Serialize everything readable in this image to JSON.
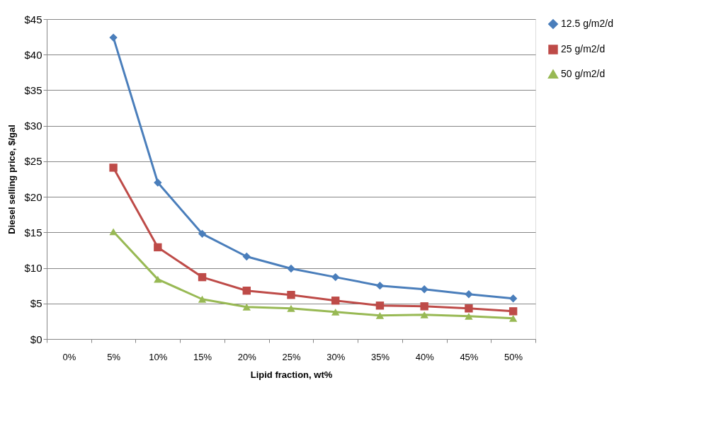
{
  "chart_data": {
    "type": "line",
    "xlabel": "Lipid fraction, wt%",
    "ylabel": "Diesel selling price, $/gal",
    "categories": [
      "0%",
      "5%",
      "10%",
      "15%",
      "20%",
      "25%",
      "30%",
      "35%",
      "40%",
      "45%",
      "50%"
    ],
    "series": [
      {
        "name": "12.5 g/m2/d",
        "color": "#4a7ebb",
        "marker": "diamond",
        "values": [
          null,
          42.4,
          22.0,
          14.8,
          11.6,
          9.9,
          8.7,
          7.5,
          7.0,
          6.3,
          5.7
        ]
      },
      {
        "name": "25 g/m2/d",
        "color": "#be4b48",
        "marker": "square",
        "values": [
          null,
          24.1,
          12.9,
          8.7,
          6.8,
          6.2,
          5.4,
          4.7,
          4.6,
          4.3,
          3.9
        ]
      },
      {
        "name": "50 g/m2/d",
        "color": "#98b954",
        "marker": "triangle",
        "values": [
          null,
          15.1,
          8.4,
          5.6,
          4.5,
          4.3,
          3.8,
          3.3,
          3.4,
          3.2,
          2.9
        ]
      }
    ],
    "ylim": [
      0,
      45
    ],
    "yticks": [
      {
        "value": 0,
        "label": "$0"
      },
      {
        "value": 5,
        "label": "$5"
      },
      {
        "value": 10,
        "label": "$10"
      },
      {
        "value": 15,
        "label": "$15"
      },
      {
        "value": 20,
        "label": "$20"
      },
      {
        "value": 25,
        "label": "$25"
      },
      {
        "value": 30,
        "label": "$30"
      },
      {
        "value": 35,
        "label": "$35"
      },
      {
        "value": 40,
        "label": "$40"
      },
      {
        "value": 45,
        "label": "$45"
      }
    ],
    "grid": "y",
    "legend": "right",
    "line_style": "solid"
  }
}
